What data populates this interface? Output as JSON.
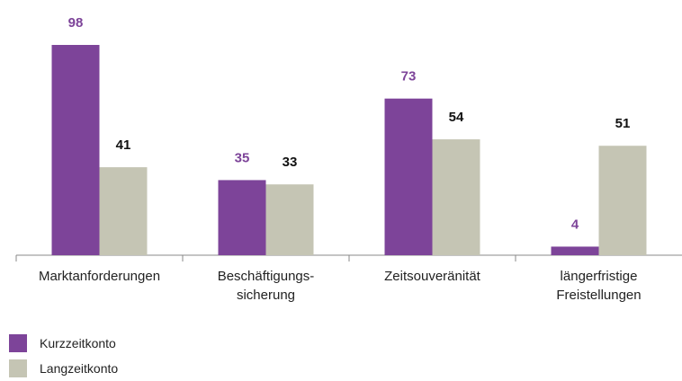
{
  "chart_data": {
    "type": "bar",
    "categories": [
      [
        "Marktanforderungen"
      ],
      [
        "Beschäftigungs-",
        "sicherung"
      ],
      [
        "Zeitsouveränität"
      ],
      [
        "längerfristige",
        "Freistellungen"
      ]
    ],
    "series": [
      {
        "name": "Kurzzeitkonto",
        "color": "#7d4499",
        "values": [
          98,
          35,
          73,
          4
        ]
      },
      {
        "name": "Langzeitkonto",
        "color": "#c5c5b4",
        "values": [
          41,
          33,
          54,
          51
        ]
      }
    ],
    "legend": "bottom-left"
  }
}
